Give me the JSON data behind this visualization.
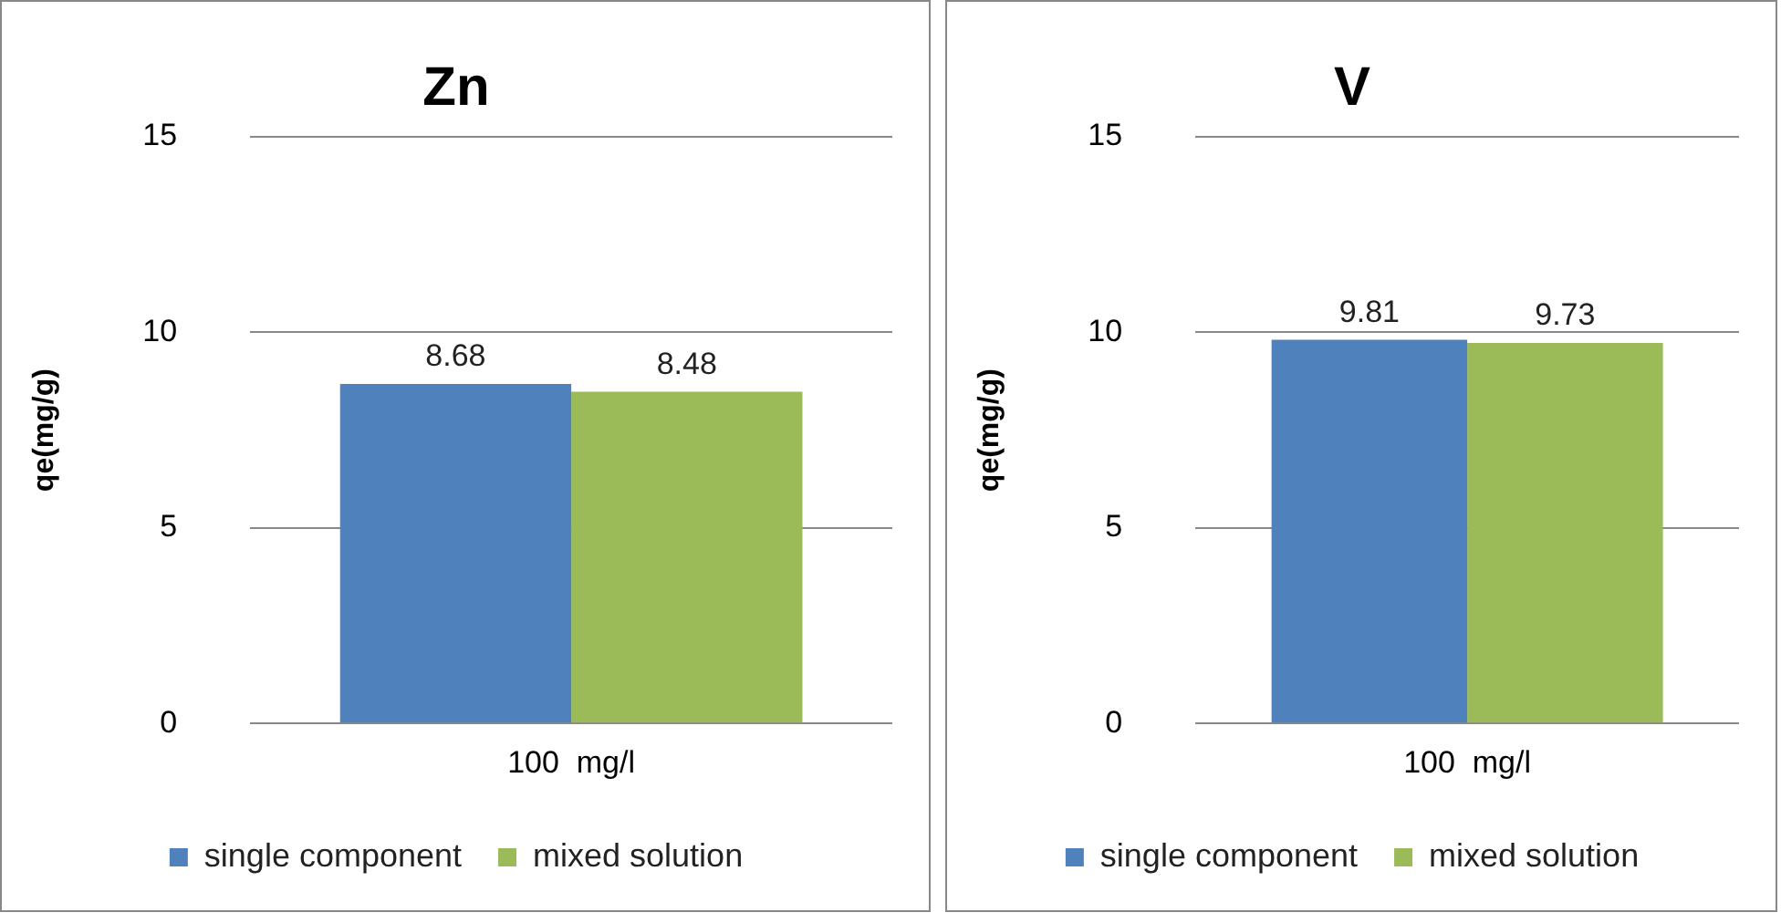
{
  "chart_data": [
    {
      "type": "bar",
      "title": "Zn",
      "ylabel": "qe(mg/g)",
      "categories": [
        "100  mg/l"
      ],
      "series": [
        {
          "name": "single component",
          "color": "#4f81bd",
          "values": [
            8.68
          ]
        },
        {
          "name": "mixed solution",
          "color": "#9bbb59",
          "values": [
            8.48
          ]
        }
      ],
      "ylim": [
        0,
        15
      ],
      "yticks": [
        0,
        5,
        10,
        15
      ],
      "grid": "y",
      "legend": "bottom",
      "data_labels": true
    },
    {
      "type": "bar",
      "title": "V",
      "ylabel": "qe(mg/g)",
      "categories": [
        "100  mg/l"
      ],
      "series": [
        {
          "name": "single component",
          "color": "#4f81bd",
          "values": [
            9.81
          ]
        },
        {
          "name": "mixed solution",
          "color": "#9bbb59",
          "values": [
            9.73
          ]
        }
      ],
      "ylim": [
        0,
        15
      ],
      "yticks": [
        0,
        5,
        10,
        15
      ],
      "grid": "y",
      "legend": "bottom",
      "data_labels": true
    }
  ]
}
